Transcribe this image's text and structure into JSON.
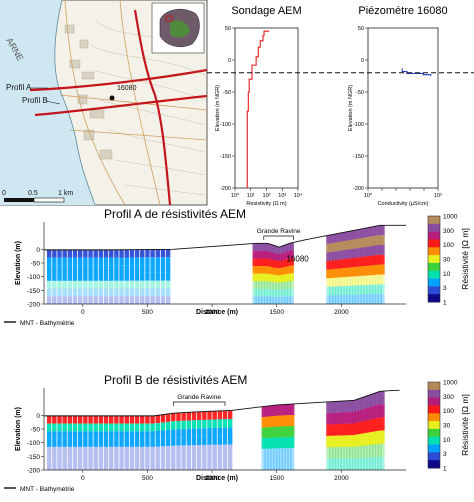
{
  "map": {
    "labels": {
      "profil_a": "Profil A",
      "profil_b": "Profil B",
      "well": "16080",
      "scale_ticks": [
        "0",
        "0.5",
        "1 km"
      ],
      "sea_letters": "ARNE"
    },
    "colors": {
      "profile_line": "#c4161c",
      "sea": "#cfe7f1"
    }
  },
  "chart_data": [
    {
      "type": "line",
      "title": "Sondage AEM",
      "xlabel": "Resistivity (Ω m)",
      "ylabel": "Elevation (m NGR)",
      "x_scale": "log",
      "xlim": [
        1,
        10000
      ],
      "ylim": [
        -200,
        50
      ],
      "x_ticks": [
        "10⁰",
        "10¹",
        "10²",
        "10³",
        "10⁴"
      ],
      "y_ticks": [
        "50",
        "0",
        "-50",
        "-100",
        "-150",
        "-200"
      ],
      "series": [
        {
          "color": "#e01e1e",
          "points": [
            [
              150,
              45
            ],
            [
              70,
              38
            ],
            [
              60,
              30
            ],
            [
              40,
              20
            ],
            [
              30,
              5
            ],
            [
              22,
              -8
            ],
            [
              12,
              -30
            ],
            [
              8,
              -50
            ],
            [
              7,
              -80
            ],
            [
              6,
              -120
            ],
            [
              6,
              -200
            ]
          ]
        }
      ],
      "reference_line_y": -20
    },
    {
      "type": "line",
      "title": "Piézométre 16080",
      "xlabel": "Conductivity (µS/cm)",
      "ylabel": "Elevation (m NGR)",
      "x_scale": "log",
      "xlim": [
        1,
        100000
      ],
      "ylim": [
        -200,
        50
      ],
      "x_ticks": [
        "10⁰",
        "10⁵"
      ],
      "y_ticks": [
        "50",
        "0",
        "-50",
        "-100",
        "-150",
        "-200"
      ],
      "series": [
        {
          "color": "#1f3fbf",
          "points": [
            [
              280,
              -13
            ],
            [
              280,
              -18
            ],
            [
              600,
              -21
            ],
            [
              9000,
              -23
            ],
            [
              30000,
              -25
            ]
          ]
        }
      ],
      "reference_line_y": -20
    },
    {
      "type": "heatmap",
      "title": "Profil A de résistivités AEM",
      "xlabel": "Distance (m)",
      "ylabel": "Elevation (m)",
      "xlim": [
        -300,
        2500
      ],
      "ylim": [
        -200,
        100
      ],
      "x_ticks": [
        0,
        500,
        1000,
        1500,
        2000
      ],
      "y_ticks": [
        0,
        -50,
        -100,
        -150,
        -200
      ],
      "annotations": [
        {
          "text": "Grande Ravine",
          "x_start": 1400,
          "x_end": 1630
        },
        {
          "text": "16080",
          "x": 1560
        }
      ],
      "topography": [
        [
          -300,
          -2
        ],
        [
          200,
          -2
        ],
        [
          700,
          0
        ],
        [
          1350,
          22
        ],
        [
          1430,
          22
        ],
        [
          1520,
          8
        ],
        [
          1600,
          22
        ],
        [
          1720,
          35
        ],
        [
          2300,
          88
        ],
        [
          2500,
          88
        ]
      ],
      "legend_line": "MNT - Bathymétrie"
    },
    {
      "type": "heatmap",
      "title": "Profil B de résistivités AEM",
      "xlabel": "Distance (m)",
      "ylabel": "Elevation (m)",
      "xlim": [
        -300,
        2500
      ],
      "ylim": [
        -200,
        100
      ],
      "x_ticks": [
        0,
        500,
        1000,
        1500,
        2000
      ],
      "y_ticks": [
        0,
        -50,
        -100,
        -150,
        -200
      ],
      "annotations": [
        {
          "text": "Grande Ravine",
          "x_start": 700,
          "x_end": 1100
        }
      ],
      "topography": [
        [
          -300,
          -2
        ],
        [
          550,
          -2
        ],
        [
          700,
          8
        ],
        [
          850,
          12
        ],
        [
          1000,
          15
        ],
        [
          1150,
          18
        ],
        [
          1500,
          38
        ],
        [
          2100,
          55
        ],
        [
          2300,
          88
        ],
        [
          2450,
          92
        ]
      ],
      "legend_line": "MNT - Bathymétrie"
    }
  ],
  "colorbar": {
    "label": "Résistivité [Ω m]",
    "ticks": [
      "1000",
      "300",
      "100",
      "30",
      "10",
      "3",
      "1"
    ],
    "colors": [
      "#0d0887",
      "#5b2fb5",
      "#00a2ff",
      "#00e0b0",
      "#3bd13b",
      "#e7ef1f",
      "#ff8c00",
      "#ff1a1a",
      "#b71c7c",
      "#8b4da0",
      "#c8a8e8"
    ]
  }
}
